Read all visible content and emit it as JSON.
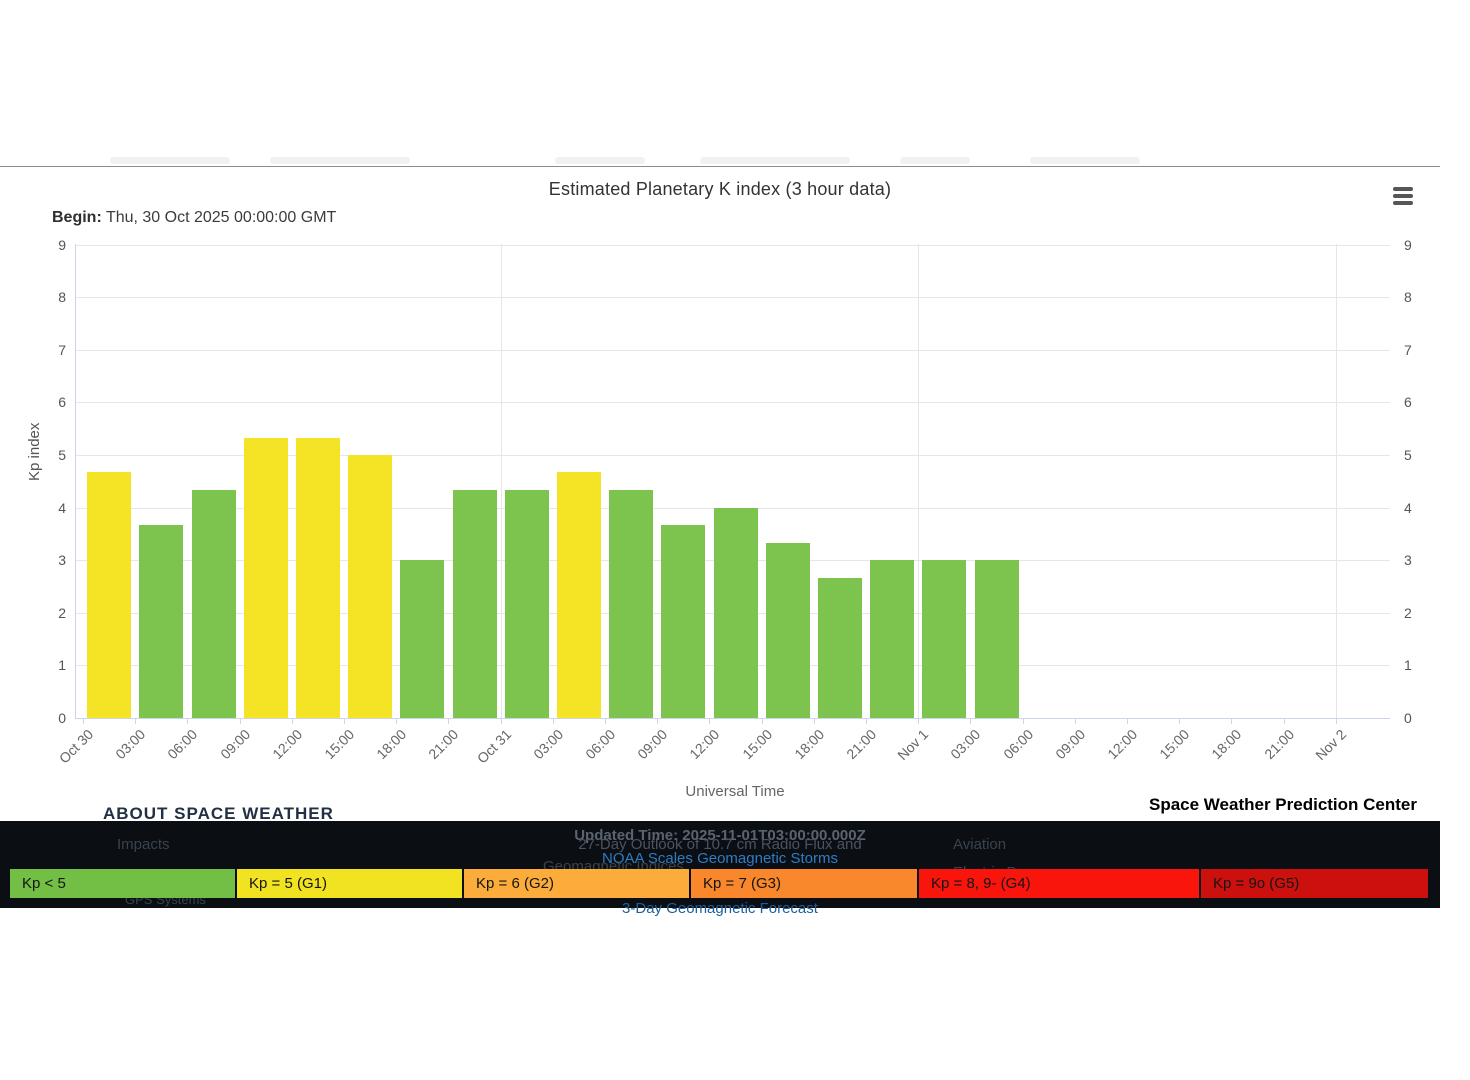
{
  "chart": {
    "title": "Estimated Planetary K index (3 hour data)",
    "begin_label": "Begin:",
    "begin_value": "Thu, 30 Oct 2025 00:00:00 GMT",
    "credits": "Space Weather Prediction Center",
    "menu_icon": "hamburger-menu-icon"
  },
  "chart_data": {
    "type": "bar",
    "title": "Estimated Planetary K index (3 hour data)",
    "xlabel": "Universal Time",
    "ylabel": "Kp index",
    "ylim": [
      0,
      9
    ],
    "ytick_labels": [
      "0",
      "1",
      "2",
      "3",
      "4",
      "5",
      "6",
      "7",
      "8",
      "9"
    ],
    "xtick_labels": [
      "Oct 30",
      "03:00",
      "06:00",
      "09:00",
      "12:00",
      "15:00",
      "18:00",
      "21:00",
      "Oct 31",
      "03:00",
      "06:00",
      "09:00",
      "12:00",
      "15:00",
      "18:00",
      "21:00",
      "Nov 1",
      "03:00",
      "06:00",
      "09:00",
      "12:00",
      "15:00",
      "18:00",
      "21:00",
      "Nov 2"
    ],
    "categories": [
      "Oct 30 00:00",
      "Oct 30 03:00",
      "Oct 30 06:00",
      "Oct 30 09:00",
      "Oct 30 12:00",
      "Oct 30 15:00",
      "Oct 30 18:00",
      "Oct 30 21:00",
      "Oct 31 00:00",
      "Oct 31 03:00",
      "Oct 31 06:00",
      "Oct 31 09:00",
      "Oct 31 12:00",
      "Oct 31 15:00",
      "Oct 31 18:00",
      "Oct 31 21:00",
      "Nov 1 00:00",
      "Nov 1 03:00"
    ],
    "values": [
      4.67,
      3.67,
      4.33,
      5.33,
      5.33,
      5.0,
      3.0,
      4.33,
      4.33,
      4.67,
      4.33,
      3.67,
      4.0,
      3.33,
      2.67,
      3.0,
      3.0,
      3.0
    ],
    "colors": [
      "#F5E325",
      "#7CC44E",
      "#7CC44E",
      "#F5E325",
      "#F5E325",
      "#F5E325",
      "#7CC44E",
      "#7CC44E",
      "#7CC44E",
      "#F5E325",
      "#7CC44E",
      "#7CC44E",
      "#7CC44E",
      "#7CC44E",
      "#7CC44E",
      "#7CC44E",
      "#7CC44E",
      "#7CC44E"
    ],
    "bar_color_rule": "yellow (G1) when Kp >= 4.67, green when Kp < 4.67",
    "grid": {
      "horizontal": true,
      "vertical_day_boundary_ticks": [
        8,
        16,
        24
      ]
    },
    "legend_position": "bottom"
  },
  "legend": {
    "items": [
      {
        "label": "Kp < 5",
        "color": "#73BF45"
      },
      {
        "label": "Kp = 5 (G1)",
        "color": "#F1E321"
      },
      {
        "label": "Kp = 6 (G2)",
        "color": "#FBAC3A"
      },
      {
        "label": "Kp = 7 (G3)",
        "color": "#F8882B"
      },
      {
        "label": "Kp = 8, 9- (G4)",
        "color": "#F9140C"
      },
      {
        "label": "Kp = 9o (G5)",
        "color": "#CC100E"
      }
    ]
  },
  "background_page": {
    "heading": "ABOUT SPACE WEATHER",
    "updated_time": "Updated Time: 2025-11-01T03:00:00.000Z",
    "outlook_text": "27-Day Outlook of 10.7 cm Radio Flux and",
    "noaa_scales_link": "NOAA Scales Geomagnetic Storms",
    "geomagnetic_indices": "Geomagnetic Indices",
    "impacts": "Impacts",
    "aviation": "Aviation",
    "electric_power": "Electric Power",
    "gps_systems": "GPS Systems",
    "forecast_link": "3-Day Geomagnetic Forecast"
  }
}
